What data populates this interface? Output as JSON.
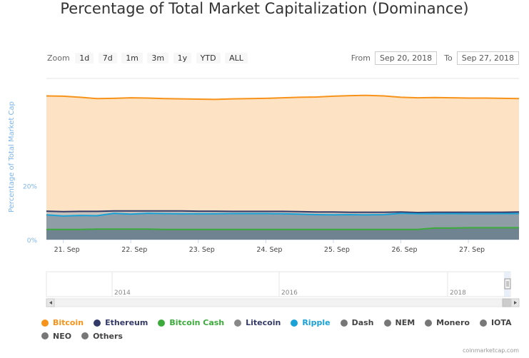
{
  "chart_data": {
    "type": "area",
    "title": "Percentage of Total Market Capitalization (Dominance)",
    "ylabel": "Percentage of Total Market Cap",
    "y_ticks": [
      "20%",
      "0%"
    ],
    "ylim": [
      0,
      60
    ],
    "grid": true,
    "x_ticks": [
      "21. Sep",
      "22. Sep",
      "23. Sep",
      "24. Sep",
      "25. Sep",
      "26. Sep",
      "27. Sep"
    ],
    "x": [
      "20. Sep 18:00",
      "21. Sep 00:00",
      "21. Sep 06:00",
      "21. Sep 12:00",
      "21. Sep 18:00",
      "22. Sep 00:00",
      "22. Sep 06:00",
      "22. Sep 12:00",
      "22. Sep 18:00",
      "23. Sep 00:00",
      "23. Sep 06:00",
      "23. Sep 12:00",
      "23. Sep 18:00",
      "24. Sep 00:00",
      "24. Sep 06:00",
      "24. Sep 12:00",
      "24. Sep 18:00",
      "25. Sep 00:00",
      "25. Sep 06:00",
      "25. Sep 12:00",
      "25. Sep 18:00",
      "26. Sep 00:00",
      "26. Sep 06:00",
      "26. Sep 12:00",
      "26. Sep 18:00",
      "27. Sep 00:00",
      "27. Sep 06:00",
      "27. Sep 12:00",
      "27. Sep 18:00"
    ],
    "series": [
      {
        "name": "Bitcoin",
        "color": "#f7931a",
        "values": [
          53.5,
          53.4,
          53.0,
          52.5,
          52.6,
          52.8,
          52.7,
          52.5,
          52.4,
          52.3,
          52.2,
          52.4,
          52.5,
          52.6,
          52.8,
          53.0,
          53.1,
          53.4,
          53.6,
          53.7,
          53.5,
          53.0,
          52.8,
          52.9,
          52.8,
          52.7,
          52.7,
          52.6,
          52.5
        ]
      },
      {
        "name": "Ethereum",
        "color": "#343a68",
        "values": [
          10.6,
          10.4,
          10.5,
          10.5,
          10.7,
          10.7,
          10.7,
          10.7,
          10.7,
          10.6,
          10.6,
          10.5,
          10.5,
          10.5,
          10.5,
          10.4,
          10.3,
          10.3,
          10.2,
          10.2,
          10.2,
          10.3,
          10.1,
          10.2,
          10.2,
          10.2,
          10.2,
          10.2,
          10.3
        ]
      },
      {
        "name": "Bitcoin Cash",
        "color": "#3cab3c",
        "values": [
          3.8,
          3.8,
          3.8,
          3.9,
          3.9,
          3.9,
          3.9,
          3.8,
          3.8,
          3.8,
          3.8,
          3.8,
          3.8,
          3.8,
          3.8,
          3.8,
          3.8,
          3.8,
          3.8,
          3.8,
          3.8,
          3.8,
          3.8,
          4.3,
          4.3,
          4.4,
          4.4,
          4.4,
          4.4
        ]
      },
      {
        "name": "Ripple",
        "color": "#1aa1d6",
        "values": [
          9.2,
          8.8,
          9.0,
          8.9,
          9.8,
          9.5,
          9.8,
          9.7,
          9.6,
          9.6,
          9.6,
          9.7,
          9.7,
          9.7,
          9.6,
          9.5,
          9.3,
          9.2,
          9.3,
          9.2,
          9.3,
          9.8,
          9.6,
          9.6,
          9.7,
          9.6,
          9.6,
          9.7,
          9.7
        ]
      }
    ],
    "legend": [
      "Bitcoin",
      "Ethereum",
      "Bitcoin Cash",
      "Litecoin",
      "Ripple",
      "Dash",
      "NEM",
      "Monero",
      "IOTA",
      "NEO",
      "Others"
    ],
    "legend_placement": "bottom",
    "navigator_ticks": [
      "2014",
      "2016",
      "2018"
    ]
  },
  "range_selector": {
    "zoom_label": "Zoom",
    "buttons": [
      "1d",
      "7d",
      "1m",
      "3m",
      "1y",
      "YTD",
      "ALL"
    ],
    "from_label": "From",
    "from_value": "Sep 20, 2018",
    "to_label": "To",
    "to_value": "Sep 27, 2018"
  },
  "legend_items": [
    {
      "label": "Bitcoin",
      "color": "#f7931a"
    },
    {
      "label": "Ethereum",
      "color": "#343a68"
    },
    {
      "label": "Bitcoin Cash",
      "color": "#3cab3c"
    },
    {
      "label": "Litecoin",
      "color": "#888888"
    },
    {
      "label": "Ripple",
      "color": "#1aa1d6"
    },
    {
      "label": "Dash",
      "color": "#777777"
    },
    {
      "label": "NEM",
      "color": "#777777"
    },
    {
      "label": "Monero",
      "color": "#777777"
    },
    {
      "label": "IOTA",
      "color": "#777777"
    },
    {
      "label": "NEO",
      "color": "#777777"
    },
    {
      "label": "Others",
      "color": "#777777"
    }
  ],
  "credit": "coinmarketcap.com"
}
